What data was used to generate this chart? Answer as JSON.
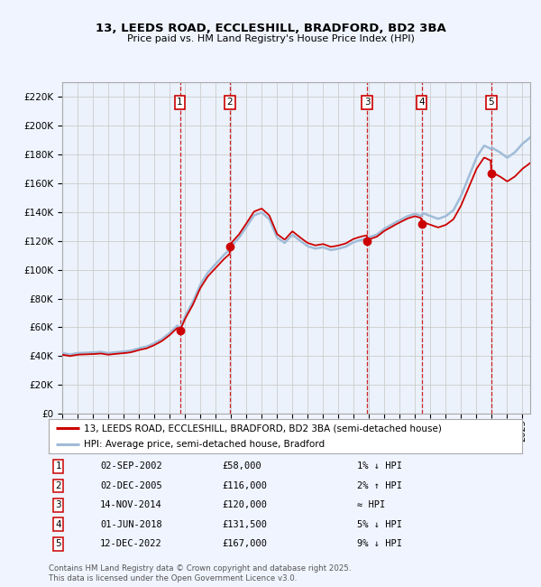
{
  "title": "13, LEEDS ROAD, ECCLESHILL, BRADFORD, BD2 3BA",
  "subtitle": "Price paid vs. HM Land Registry's House Price Index (HPI)",
  "xlim_start": 1995.0,
  "xlim_end": 2025.5,
  "ylim_min": 0,
  "ylim_max": 230000,
  "yticks": [
    0,
    20000,
    40000,
    60000,
    80000,
    100000,
    120000,
    140000,
    160000,
    180000,
    200000,
    220000
  ],
  "ytick_labels": [
    "£0",
    "£20K",
    "£40K",
    "£60K",
    "£80K",
    "£100K",
    "£120K",
    "£140K",
    "£160K",
    "£180K",
    "£200K",
    "£220K"
  ],
  "transactions": [
    {
      "num": 1,
      "date_str": "02-SEP-2002",
      "date_x": 2002.67,
      "price": 58000,
      "rel": "1% ↓ HPI"
    },
    {
      "num": 2,
      "date_str": "02-DEC-2005",
      "date_x": 2005.92,
      "price": 116000,
      "rel": "2% ↑ HPI"
    },
    {
      "num": 3,
      "date_str": "14-NOV-2014",
      "date_x": 2014.87,
      "price": 120000,
      "rel": "≈ HPI"
    },
    {
      "num": 4,
      "date_str": "01-JUN-2018",
      "date_x": 2018.42,
      "price": 131500,
      "rel": "5% ↓ HPI"
    },
    {
      "num": 5,
      "date_str": "12-DEC-2022",
      "date_x": 2022.95,
      "price": 167000,
      "rel": "9% ↓ HPI"
    }
  ],
  "legend_line1": "13, LEEDS ROAD, ECCLESHILL, BRADFORD, BD2 3BA (semi-detached house)",
  "legend_line2": "HPI: Average price, semi-detached house, Bradford",
  "footnote": "Contains HM Land Registry data © Crown copyright and database right 2025.\nThis data is licensed under the Open Government Licence v3.0.",
  "bg_color": "#f0f4ff",
  "plot_bg": "#ffffff",
  "grid_color": "#cccccc",
  "hpi_line_color": "#a0bcd8",
  "price_line_color": "#cc0000",
  "dot_color": "#cc0000",
  "shade_color": "#dce8f8",
  "dashed_color": "#cc0000",
  "box_color": "#cc0000"
}
